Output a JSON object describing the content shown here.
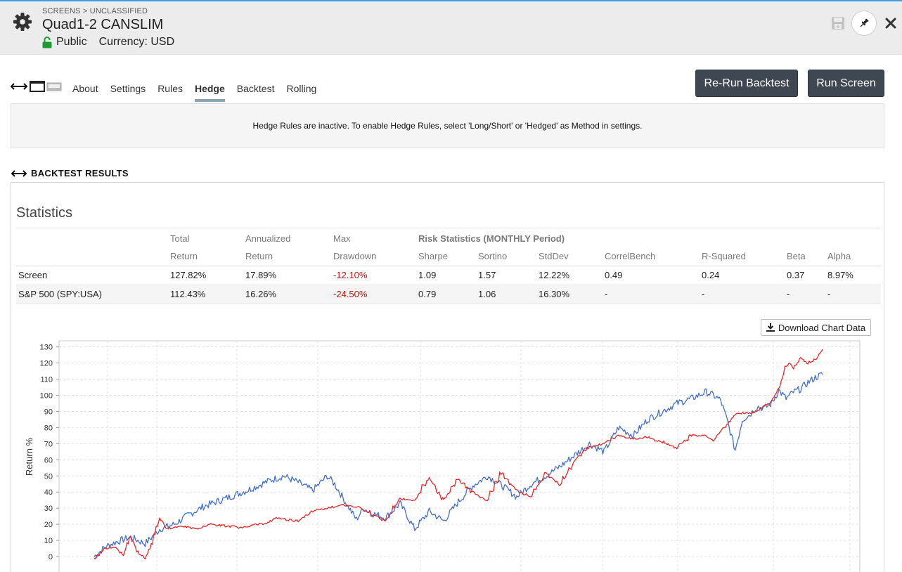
{
  "header": {
    "breadcrumb": "SCREENS > UNCLASSIFIED",
    "title": "Quad1-2 CANSLIM",
    "visibility": "Public",
    "currency": "Currency: USD"
  },
  "tabs": [
    "About",
    "Settings",
    "Rules",
    "Hedge",
    "Backtest",
    "Rolling"
  ],
  "active_tab": "Hedge",
  "buttons": {
    "rerun": "Re-Run Backtest",
    "run": "Run Screen",
    "download": "Download Chart Data"
  },
  "notice": "Hedge Rules are inactive. To enable Hedge Rules, select 'Long/Short' or 'Hedged' as Method in settings.",
  "section_title": "BACKTEST RESULTS",
  "statistics": {
    "title": "Statistics",
    "header_row1": [
      "",
      "Total",
      "Annualized",
      "Max",
      "Risk Statistics (MONTHLY Period)"
    ],
    "header_row2": [
      "",
      "Return",
      "Return",
      "Drawdown",
      "Sharpe",
      "Sortino",
      "StdDev",
      "CorrelBench",
      "R-Squared",
      "Beta",
      "Alpha"
    ],
    "rows": [
      [
        "Screen",
        "127.82%",
        "17.89%",
        "-12.10%",
        "1.09",
        "1.57",
        "12.22%",
        "0.49",
        "0.24",
        "0.37",
        "8.97%"
      ],
      [
        "S&P 500 (SPY:USA)",
        "112.43%",
        "16.26%",
        "-24.50%",
        "0.79",
        "1.06",
        "16.30%",
        "-",
        "-",
        "-",
        "-"
      ]
    ]
  },
  "colors": {
    "screen": "#e8262d",
    "benchmark": "#4470c8",
    "button": "#3f4752",
    "negative": "#c41818"
  },
  "chart_data": {
    "type": "line",
    "ylabel": "Return %",
    "ylim": [
      -5,
      135
    ],
    "yticks": [
      0,
      10,
      20,
      30,
      40,
      50,
      60,
      70,
      80,
      90,
      100,
      110,
      120,
      130
    ],
    "grid": true,
    "series": [
      {
        "color": "#e8262d",
        "x": [
          0,
          1.5,
          3,
          4,
          5,
          6,
          7,
          8,
          9,
          10,
          12,
          14,
          16,
          20,
          24,
          25,
          28,
          30,
          34,
          36,
          40,
          42,
          44,
          46,
          48,
          50,
          52,
          54,
          56,
          58,
          60,
          62,
          64,
          66,
          68,
          70,
          72,
          74,
          76,
          78,
          80,
          82,
          84,
          85,
          86,
          87,
          88,
          89,
          90,
          91,
          92,
          93,
          94,
          95,
          95.5,
          96,
          97,
          98,
          99,
          100
        ],
        "values": [
          -1,
          5,
          6,
          1,
          12,
          3,
          -1,
          8,
          24,
          17,
          19,
          17,
          20,
          18,
          21,
          24,
          22,
          28,
          32,
          31,
          22,
          36,
          35,
          49,
          35,
          48,
          40,
          35,
          52,
          41,
          37,
          52,
          44,
          60,
          68,
          70,
          75,
          73,
          74,
          71,
          67,
          75,
          75,
          72,
          78,
          82,
          88,
          89,
          89,
          90,
          93,
          96,
          104,
          118,
          120,
          116,
          123,
          120,
          122,
          128
        ]
      },
      {
        "color": "#4470c8",
        "x": [
          0,
          1.5,
          3,
          5,
          7,
          9,
          11,
          13,
          15,
          18,
          21,
          24,
          26,
          28,
          30,
          32,
          33,
          35,
          36,
          37,
          38,
          40,
          42,
          44,
          46,
          48,
          50,
          52,
          54,
          56,
          58,
          60,
          62,
          64,
          66,
          68,
          70,
          72,
          74,
          76,
          78,
          80,
          82,
          84,
          85,
          86,
          87,
          88,
          89,
          90,
          91,
          92,
          93,
          94,
          95,
          96,
          97,
          98,
          99,
          100
        ],
        "values": [
          0,
          6,
          9,
          12,
          8,
          17,
          20,
          26,
          31,
          36,
          41,
          47,
          50,
          46,
          41,
          50,
          45,
          30,
          23,
          30,
          27,
          24,
          33,
          17,
          28,
          22,
          34,
          44,
          50,
          44,
          37,
          45,
          50,
          56,
          63,
          70,
          65,
          80,
          75,
          85,
          90,
          95,
          98,
          102,
          100,
          97,
          83,
          66,
          85,
          88,
          93,
          92,
          95,
          103,
          98,
          102,
          104,
          108,
          111,
          113
        ]
      }
    ]
  }
}
